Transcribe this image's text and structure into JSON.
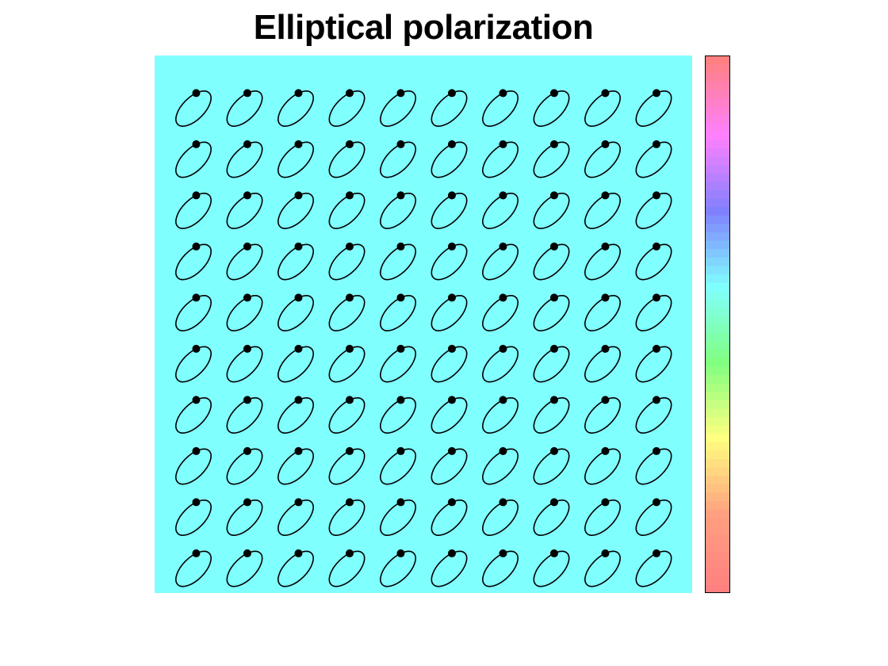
{
  "figure": {
    "title": "Elliptical polarization",
    "background_color": "#80ffff"
  },
  "grid": {
    "rows": 10,
    "cols": 10
  },
  "ellipse": {
    "stroke_color": "#000000",
    "marker_color": "#000000",
    "tilt_deg": 45,
    "axis_ratio": 0.5
  },
  "colorbar": {
    "stops": [
      "#ff8080",
      "#ffa080",
      "#ffff80",
      "#80ff80",
      "#80ffff",
      "#8080ff",
      "#ff80ff",
      "#ff8080"
    ]
  }
}
